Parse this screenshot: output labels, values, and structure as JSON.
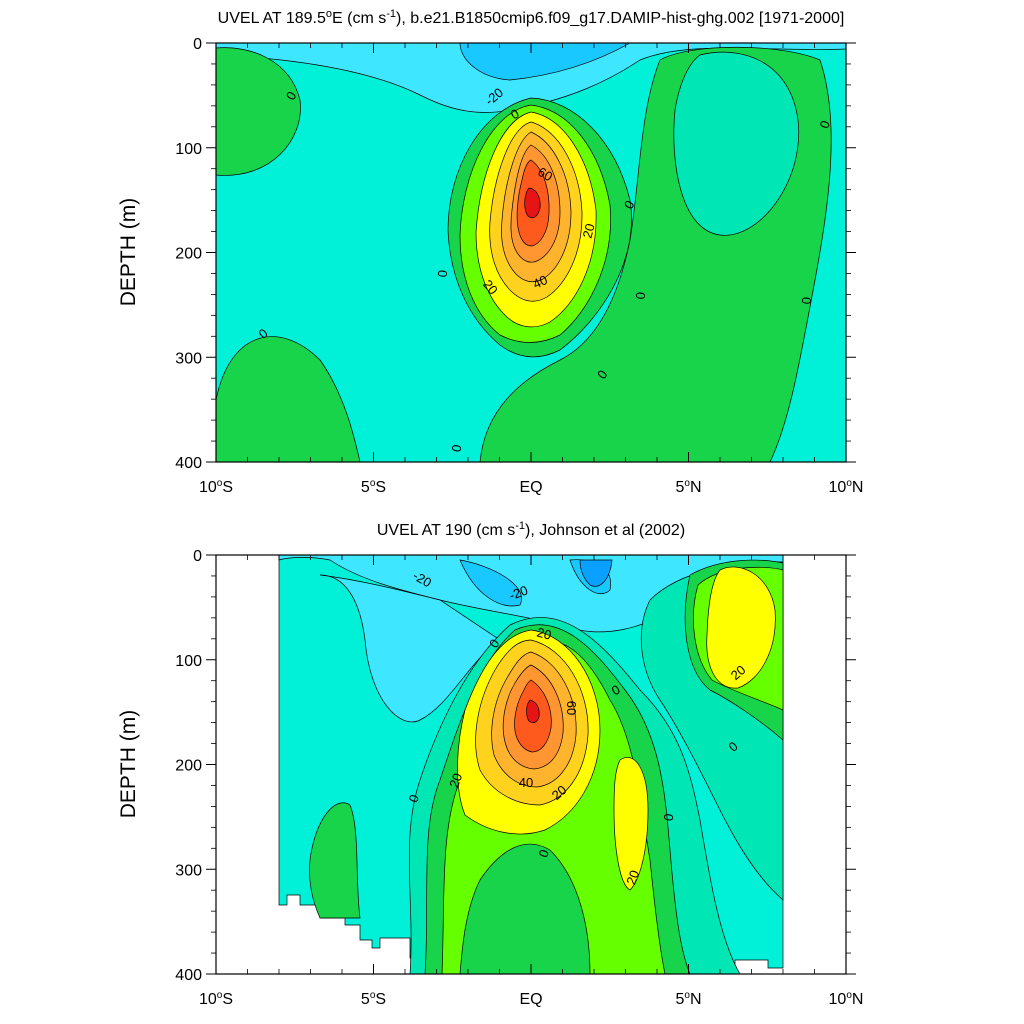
{
  "chart_data": [
    {
      "type": "contour",
      "title": "UVEL AT 189.5°E (cm s⁻¹), b.e21.B1850cmip6.f09_g17.DAMIP-hist-ghg.002 [1971-2000]",
      "title_parts": [
        "UVEL AT 189.5",
        "o",
        "E (cm s",
        "-1",
        "), b.e21.B1850cmip6.f09_g17.DAMIP-hist-ghg.002 [1971-2000]"
      ],
      "ylabel": "DEPTH (m)",
      "xlabel": "",
      "xlim": [
        -10,
        10
      ],
      "ylim": [
        400,
        0
      ],
      "x_ticks": [
        -10,
        -5,
        0,
        5,
        10
      ],
      "y_ticks": [
        0,
        100,
        200,
        300,
        400
      ],
      "contour_interval": 10,
      "contour_labels": [
        "0",
        "-20",
        "0",
        "60",
        "0",
        "20",
        "0",
        "40",
        "20",
        "0",
        "0",
        "0",
        "0",
        "0",
        "0",
        "0"
      ],
      "features": [
        {
          "kind": "core",
          "x": 0.0,
          "depth": 155,
          "value": 75
        },
        {
          "kind": "core",
          "x": 6.5,
          "depth": 80,
          "value": 5
        },
        {
          "kind": "core",
          "x": -10,
          "depth": 60,
          "value": 5
        },
        {
          "kind": "core",
          "x": -10,
          "depth": 380,
          "value": 5
        },
        {
          "kind": "trough",
          "x": -1.0,
          "depth": 10,
          "value": -20
        }
      ]
    },
    {
      "type": "contour",
      "title": "UVEL AT 190 (cm s⁻¹), Johnson et al (2002)",
      "title_parts": [
        "UVEL AT 190 (cm s",
        "-1",
        "), Johnson et al (2002)"
      ],
      "ylabel": "DEPTH (m)",
      "xlabel": "",
      "xlim": [
        -10,
        10
      ],
      "ylim": [
        400,
        0
      ],
      "x_ticks": [
        -10,
        -5,
        0,
        5,
        10
      ],
      "y_ticks": [
        0,
        100,
        200,
        300,
        400
      ],
      "contour_interval": 10,
      "data_x_range": [
        -8,
        8
      ],
      "contour_labels": [
        "-20",
        "-20",
        "20",
        "0",
        "0",
        "20",
        "60",
        "0",
        "20",
        "40",
        "20",
        "0",
        "0",
        "0",
        "20"
      ],
      "features": [
        {
          "kind": "core",
          "x": 0.0,
          "depth": 150,
          "value": 80
        },
        {
          "kind": "core",
          "x": 6.5,
          "depth": 80,
          "value": 25
        },
        {
          "kind": "core",
          "x": 3.2,
          "depth": 250,
          "value": 25
        },
        {
          "kind": "core",
          "x": -5.8,
          "depth": 290,
          "value": 5
        },
        {
          "kind": "trough",
          "x": -2.0,
          "depth": 10,
          "value": -25
        },
        {
          "kind": "trough",
          "x": 2.0,
          "depth": 10,
          "value": -25
        }
      ]
    }
  ],
  "tick_labels": {
    "x": [
      {
        "num": "10",
        "deg": "o",
        "hemi": "S"
      },
      {
        "num": "5",
        "deg": "o",
        "hemi": "S"
      },
      {
        "num": "EQ",
        "deg": "",
        "hemi": ""
      },
      {
        "num": "5",
        "deg": "o",
        "hemi": "N"
      },
      {
        "num": "10",
        "deg": "o",
        "hemi": "N"
      }
    ],
    "y": [
      "0",
      "100",
      "200",
      "300",
      "400"
    ]
  },
  "colors": {
    "m30": "#0aa0ff",
    "m20": "#18c8ff",
    "m10": "#3ee6ff",
    "z0": "#00f0d8",
    "p0": "#00e6b4",
    "p10": "#17d44a",
    "p20": "#66ff00",
    "p30": "#ffff00",
    "p40": "#ffd21e",
    "p50": "#ffb42e",
    "p60": "#ff9632",
    "p70": "#ff5a1e",
    "p80": "#e61414"
  }
}
